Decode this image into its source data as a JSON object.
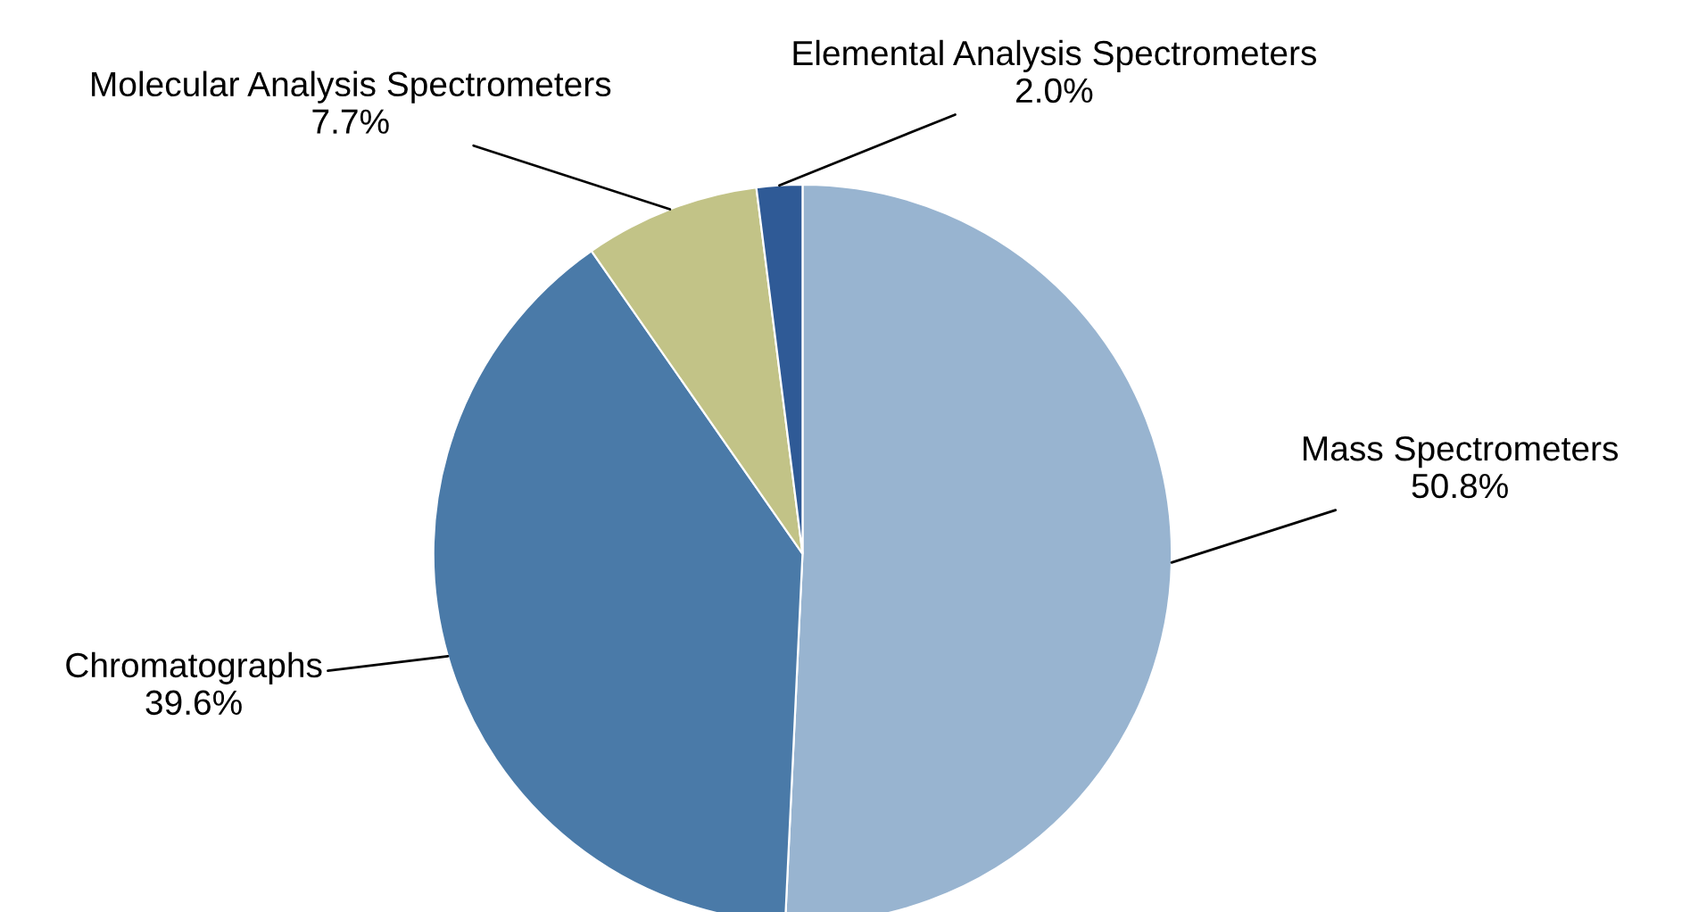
{
  "chart_data": {
    "type": "pie",
    "categories": [
      "Mass Spectrometers",
      "Chromatographs",
      "Molecular Analysis Spectrometers",
      "Elemental Analysis Spectrometers"
    ],
    "values": [
      50.8,
      39.6,
      7.7,
      2.0
    ],
    "value_labels": [
      "50.8%",
      "39.6%",
      "7.7%",
      "2.0%"
    ],
    "colors": [
      "#98b4d0",
      "#4a7aa8",
      "#c2c387",
      "#2f5a96"
    ],
    "legend": false
  }
}
